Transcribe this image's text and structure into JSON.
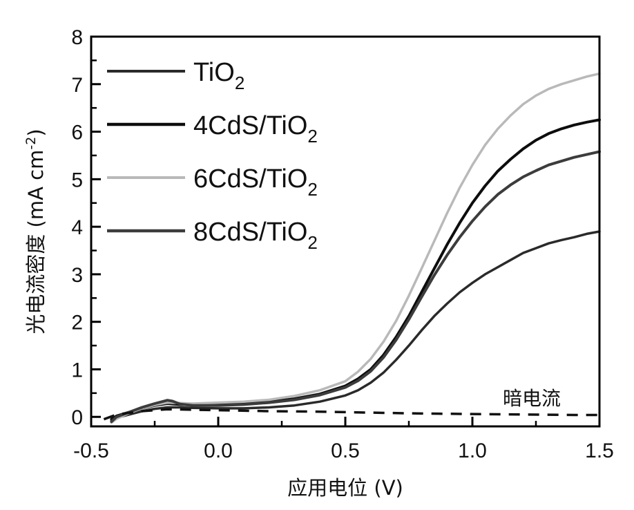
{
  "chart_data": {
    "type": "line",
    "title": "",
    "xlabel": "应用电位 (V)",
    "ylabel": "光电流密度 (mA cm",
    "ylabel_sup": "-2",
    "ylabel_close": ")",
    "xlim": [
      -0.5,
      1.5
    ],
    "ylim": [
      -0.2,
      8
    ],
    "xticks": [
      -0.5,
      0.0,
      0.5,
      1.0,
      1.5
    ],
    "xtick_labels": [
      "-0.5",
      "0.0",
      "0.5",
      "1.0",
      "1.5"
    ],
    "yticks": [
      0,
      1,
      2,
      3,
      4,
      5,
      6,
      7,
      8
    ],
    "ytick_labels": [
      "0",
      "1",
      "2",
      "3",
      "4",
      "5",
      "6",
      "7",
      "8"
    ],
    "legend_position": "top-left",
    "annotation": "暗电流",
    "series": [
      {
        "name": "TiO",
        "sub": "2",
        "color": "#2a2a2a",
        "width": 3.5,
        "dash": "",
        "x": [
          -0.42,
          -0.4,
          -0.35,
          -0.3,
          -0.25,
          -0.2,
          -0.15,
          -0.1,
          0.0,
          0.1,
          0.2,
          0.3,
          0.4,
          0.5,
          0.55,
          0.6,
          0.65,
          0.7,
          0.75,
          0.8,
          0.85,
          0.9,
          0.95,
          1.0,
          1.05,
          1.1,
          1.15,
          1.2,
          1.25,
          1.3,
          1.35,
          1.4,
          1.45,
          1.5
        ],
        "y": [
          -0.08,
          -0.02,
          0.05,
          0.12,
          0.17,
          0.2,
          0.2,
          0.19,
          0.18,
          0.18,
          0.2,
          0.24,
          0.32,
          0.45,
          0.56,
          0.72,
          0.93,
          1.2,
          1.5,
          1.82,
          2.12,
          2.38,
          2.62,
          2.82,
          3.0,
          3.15,
          3.3,
          3.45,
          3.55,
          3.65,
          3.72,
          3.78,
          3.85,
          3.9
        ]
      },
      {
        "name": "4CdS/TiO",
        "sub": "2",
        "color": "#0d0d0d",
        "width": 4,
        "dash": "",
        "x": [
          -0.42,
          -0.4,
          -0.35,
          -0.3,
          -0.25,
          -0.2,
          -0.15,
          -0.1,
          0.0,
          0.1,
          0.2,
          0.3,
          0.4,
          0.5,
          0.55,
          0.6,
          0.65,
          0.7,
          0.75,
          0.8,
          0.85,
          0.9,
          0.95,
          1.0,
          1.05,
          1.1,
          1.15,
          1.2,
          1.25,
          1.3,
          1.35,
          1.4,
          1.45,
          1.5
        ],
        "y": [
          -0.05,
          0.02,
          0.1,
          0.18,
          0.24,
          0.28,
          0.26,
          0.25,
          0.26,
          0.28,
          0.32,
          0.38,
          0.48,
          0.65,
          0.8,
          1.0,
          1.3,
          1.68,
          2.12,
          2.62,
          3.12,
          3.62,
          4.08,
          4.5,
          4.86,
          5.17,
          5.42,
          5.64,
          5.82,
          5.96,
          6.06,
          6.14,
          6.2,
          6.25
        ]
      },
      {
        "name": "6CdS/TiO",
        "sub": "2",
        "color": "#b9b9b9",
        "width": 3.5,
        "dash": "",
        "x": [
          -0.42,
          -0.4,
          -0.35,
          -0.3,
          -0.25,
          -0.2,
          -0.15,
          -0.1,
          0.0,
          0.1,
          0.2,
          0.3,
          0.4,
          0.5,
          0.55,
          0.6,
          0.65,
          0.7,
          0.75,
          0.8,
          0.85,
          0.9,
          0.95,
          1.0,
          1.05,
          1.1,
          1.15,
          1.2,
          1.25,
          1.3,
          1.35,
          1.4,
          1.45,
          1.5
        ],
        "y": [
          -0.12,
          -0.04,
          0.08,
          0.18,
          0.25,
          0.3,
          0.29,
          0.28,
          0.3,
          0.32,
          0.36,
          0.44,
          0.56,
          0.75,
          0.95,
          1.22,
          1.58,
          2.02,
          2.55,
          3.12,
          3.7,
          4.28,
          4.82,
          5.3,
          5.72,
          6.06,
          6.34,
          6.58,
          6.76,
          6.9,
          7.0,
          7.08,
          7.16,
          7.22
        ]
      },
      {
        "name": "8CdS/TiO",
        "sub": "2",
        "color": "#3c3c3c",
        "width": 4,
        "dash": "",
        "x": [
          -0.42,
          -0.4,
          -0.35,
          -0.3,
          -0.25,
          -0.2,
          -0.18,
          -0.15,
          -0.1,
          0.0,
          0.1,
          0.2,
          0.3,
          0.4,
          0.5,
          0.55,
          0.6,
          0.65,
          0.7,
          0.75,
          0.8,
          0.85,
          0.9,
          0.95,
          1.0,
          1.05,
          1.1,
          1.15,
          1.2,
          1.25,
          1.3,
          1.35,
          1.4,
          1.45,
          1.5
        ],
        "y": [
          -0.1,
          0.0,
          0.1,
          0.2,
          0.28,
          0.35,
          0.33,
          0.27,
          0.24,
          0.24,
          0.26,
          0.3,
          0.36,
          0.46,
          0.62,
          0.76,
          0.96,
          1.25,
          1.62,
          2.05,
          2.52,
          2.98,
          3.4,
          3.78,
          4.12,
          4.42,
          4.68,
          4.88,
          5.05,
          5.18,
          5.3,
          5.38,
          5.46,
          5.52,
          5.58
        ]
      },
      {
        "name": "暗电流",
        "sub": "",
        "color": "#111111",
        "width": 3.5,
        "dash": "16,12",
        "legend": false,
        "x": [
          -0.45,
          -0.4,
          -0.3,
          -0.2,
          -0.1,
          0.0,
          0.2,
          0.4,
          0.6,
          0.8,
          1.0,
          1.2,
          1.4,
          1.5
        ],
        "y": [
          -0.05,
          0.05,
          0.12,
          0.16,
          0.15,
          0.14,
          0.12,
          0.11,
          0.09,
          0.07,
          0.06,
          0.05,
          0.04,
          0.04
        ]
      }
    ]
  }
}
